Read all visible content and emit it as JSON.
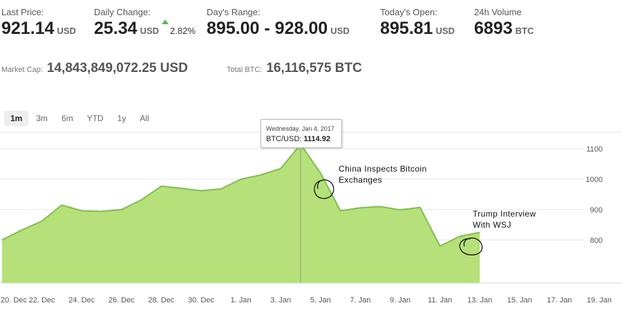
{
  "header": {
    "last_price": {
      "label": "Last Price:",
      "value": "921.14",
      "unit": "USD"
    },
    "daily_change": {
      "label": "Daily Change:",
      "value": "25.34",
      "unit": "USD",
      "percent": "2.82%"
    },
    "days_range": {
      "label": "Day's Range:",
      "value": "895.00 - 928.00",
      "unit": "USD"
    },
    "todays_open": {
      "label": "Today's Open:",
      "value": "895.81",
      "unit": "USD"
    },
    "volume_24h": {
      "label": "24h Volume",
      "value": "6893",
      "unit": "BTC"
    }
  },
  "market": {
    "cap_label": "Market Cap:",
    "cap_value": "14,843,849,072.25 USD",
    "btc_label": "Total BTC:",
    "btc_value": "16,116,575 BTC"
  },
  "ranges": [
    "1m",
    "3m",
    "6m",
    "YTD",
    "1y",
    "All"
  ],
  "active_range": "1m",
  "colors": {
    "fill": "#b5e07a",
    "line": "#7cc242",
    "up": "#5cb85c"
  },
  "tooltip": {
    "date": "Wednesday, Jan 4, 2017",
    "label": "BTC/USD:",
    "value": "1114.92"
  },
  "annotations": {
    "china": [
      "China Inspects Bitcoin",
      "Exchanges"
    ],
    "trump": [
      "Trump Interview",
      "With WSJ"
    ]
  },
  "chart_data": {
    "type": "area",
    "x": [
      "2016-12-20",
      "2016-12-21",
      "2016-12-22",
      "2016-12-23",
      "2016-12-24",
      "2016-12-25",
      "2016-12-26",
      "2016-12-27",
      "2016-12-28",
      "2016-12-29",
      "2016-12-30",
      "2016-12-31",
      "2017-01-01",
      "2017-01-02",
      "2017-01-03",
      "2017-01-04",
      "2017-01-05",
      "2017-01-06",
      "2017-01-07",
      "2017-01-08",
      "2017-01-09",
      "2017-01-10",
      "2017-01-11",
      "2017-01-12",
      "2017-01-13"
    ],
    "values": [
      800,
      833,
      862,
      915,
      896,
      894,
      900,
      932,
      977,
      970,
      962,
      968,
      1000,
      1014,
      1035,
      1114.92,
      1020,
      896,
      906,
      910,
      899,
      907,
      780,
      812,
      825
    ],
    "x_tick_labels": [
      "20. Dec",
      "22. Dec",
      "24. Dec",
      "26. Dec",
      "28. Dec",
      "30. Dec",
      "1. Jan",
      "3. Jan",
      "5. Jan",
      "7. Jan",
      "9. Jan",
      "11. Jan",
      "13. Jan",
      "15. Jan",
      "17. Jan",
      "19. Jan"
    ],
    "y_ticks": [
      800,
      900,
      1000,
      1100
    ],
    "ylim": [
      700,
      1150
    ],
    "xlim": [
      "2016-12-20",
      "2017-01-20"
    ],
    "grid": true,
    "legend": "none"
  }
}
